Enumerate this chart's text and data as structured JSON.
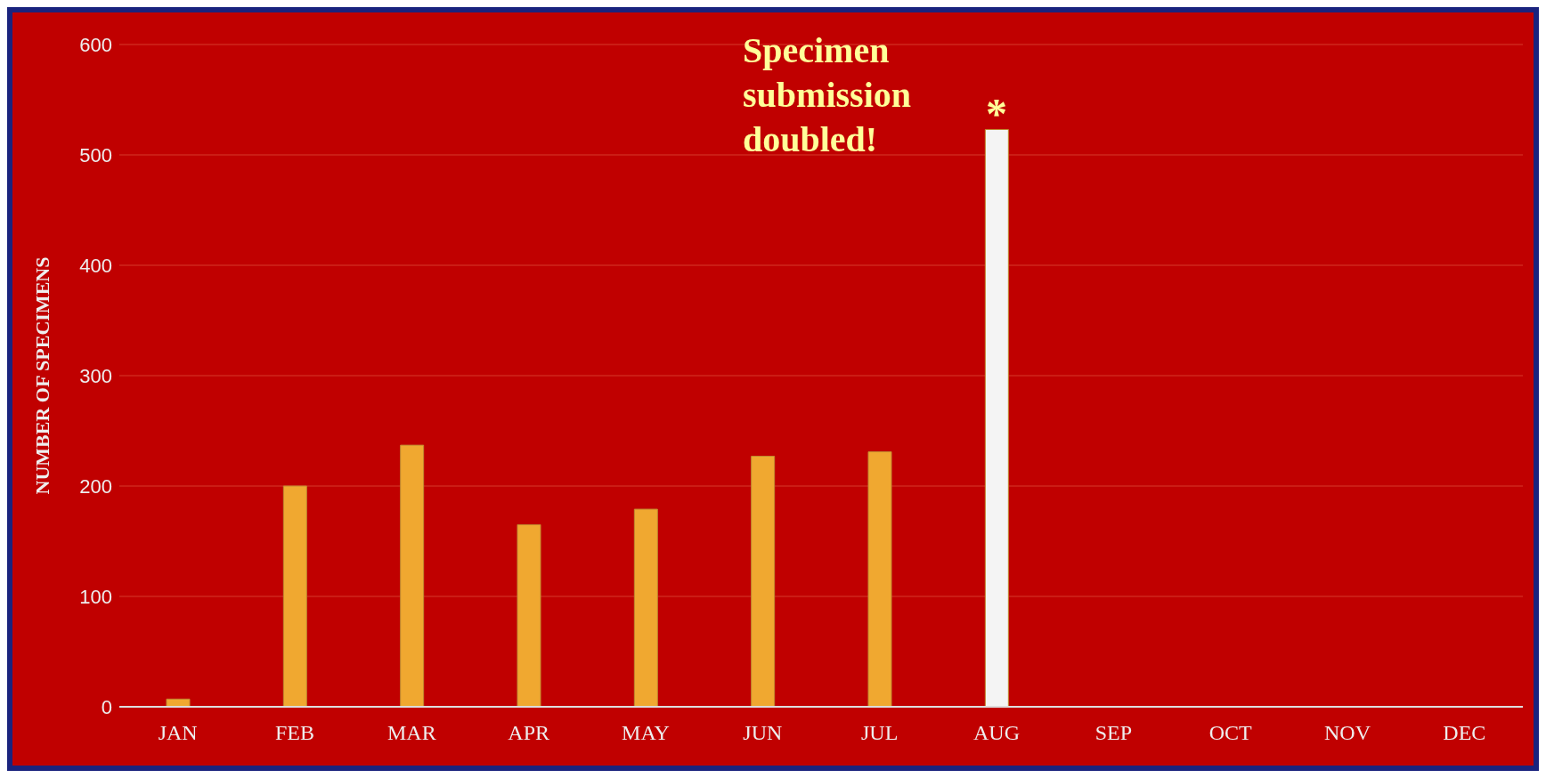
{
  "chart_data": {
    "type": "bar",
    "ylabel": "NUMBER OF SPECIMENS",
    "categories": [
      "JAN",
      "FEB",
      "MAR",
      "APR",
      "MAY",
      "JUN",
      "JUL",
      "AUG",
      "SEP",
      "OCT",
      "NOV",
      "DEC"
    ],
    "values": [
      7,
      200,
      237,
      165,
      179,
      227,
      231,
      523,
      null,
      null,
      null,
      null
    ],
    "colors": [
      "#f0a830",
      "#f0a830",
      "#f0a830",
      "#f0a830",
      "#f0a830",
      "#f0a830",
      "#f0a830",
      "#f4f4f4",
      "#f0a830",
      "#f0a830",
      "#f0a830",
      "#f0a830"
    ],
    "ylim": [
      0,
      600
    ],
    "yticks": [
      0,
      100,
      200,
      300,
      400,
      500,
      600
    ],
    "grid": "y",
    "annotations": [
      "Specimen submission doubled!",
      {
        "text": "*",
        "x": "AUG",
        "y": 523
      }
    ]
  }
}
